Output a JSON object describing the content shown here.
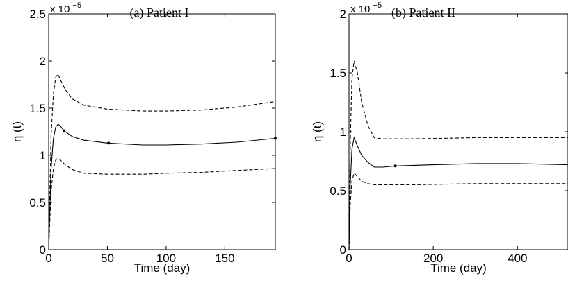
{
  "chart_data": [
    {
      "type": "line",
      "title": "(a) Patient I",
      "xlabel": "Time (day)",
      "ylabel": "η (t)",
      "y_multiplier": "x 10",
      "y_multiplier_exp": "−5",
      "xlim": [
        0,
        193
      ],
      "ylim": [
        0,
        2.5
      ],
      "xticks": [
        0,
        50,
        100,
        150
      ],
      "yticks": [
        0,
        0.5,
        1,
        1.5,
        2,
        2.5
      ],
      "ytick_labels": [
        "0",
        "0.5",
        "1",
        "1.5",
        "2",
        "2.5"
      ],
      "series": [
        {
          "style": "dashed",
          "x": [
            0,
            2,
            4,
            6,
            8,
            10,
            14,
            20,
            30,
            50,
            80,
            100,
            130,
            160,
            193
          ],
          "y": [
            0,
            1.2,
            1.65,
            1.83,
            1.86,
            1.8,
            1.7,
            1.6,
            1.53,
            1.49,
            1.47,
            1.47,
            1.48,
            1.51,
            1.57
          ]
        },
        {
          "style": "solid",
          "x": [
            0,
            2,
            4,
            6,
            8,
            10,
            13,
            20,
            30,
            50,
            80,
            100,
            130,
            160,
            193
          ],
          "y": [
            0,
            0.85,
            1.18,
            1.3,
            1.33,
            1.31,
            1.26,
            1.2,
            1.16,
            1.13,
            1.11,
            1.11,
            1.12,
            1.14,
            1.18
          ]
        },
        {
          "style": "dashed",
          "x": [
            0,
            2,
            4,
            6,
            8,
            10,
            14,
            20,
            30,
            50,
            80,
            100,
            130,
            160,
            193
          ],
          "y": [
            0,
            0.62,
            0.86,
            0.95,
            0.97,
            0.95,
            0.9,
            0.85,
            0.81,
            0.8,
            0.8,
            0.81,
            0.82,
            0.84,
            0.86
          ]
        }
      ],
      "markers": {
        "x": [
          13,
          51,
          193
        ],
        "y": [
          1.26,
          1.13,
          1.18
        ]
      }
    },
    {
      "type": "line",
      "title": "(b) Patient II",
      "xlabel": "Time (day)",
      "ylabel": "η (t)",
      "y_multiplier": "x 10",
      "y_multiplier_exp": "−5",
      "xlim": [
        0,
        520
      ],
      "ylim": [
        0,
        2
      ],
      "xticks": [
        0,
        200,
        400
      ],
      "yticks": [
        0,
        0.5,
        1,
        1.5,
        2
      ],
      "ytick_labels": [
        "0",
        "0.5",
        "1",
        "1.5",
        "2"
      ],
      "series": [
        {
          "style": "dashed",
          "x": [
            0,
            3,
            7,
            12,
            20,
            30,
            45,
            60,
            80,
            150,
            300,
            450,
            520
          ],
          "y": [
            0,
            0.9,
            1.45,
            1.6,
            1.5,
            1.25,
            1.05,
            0.95,
            0.94,
            0.94,
            0.95,
            0.95,
            0.95
          ]
        },
        {
          "style": "solid",
          "x": [
            0,
            3,
            7,
            12,
            20,
            30,
            45,
            60,
            80,
            110,
            200,
            300,
            400,
            520
          ],
          "y": [
            0,
            0.55,
            0.85,
            0.95,
            0.88,
            0.8,
            0.74,
            0.7,
            0.7,
            0.71,
            0.72,
            0.73,
            0.73,
            0.72
          ]
        },
        {
          "style": "dashed",
          "x": [
            0,
            3,
            7,
            12,
            20,
            30,
            45,
            60,
            80,
            150,
            300,
            450,
            520
          ],
          "y": [
            0,
            0.38,
            0.58,
            0.65,
            0.62,
            0.58,
            0.56,
            0.55,
            0.55,
            0.55,
            0.56,
            0.56,
            0.56
          ]
        }
      ],
      "markers": {
        "x": [
          110
        ],
        "y": [
          0.71
        ]
      }
    }
  ]
}
